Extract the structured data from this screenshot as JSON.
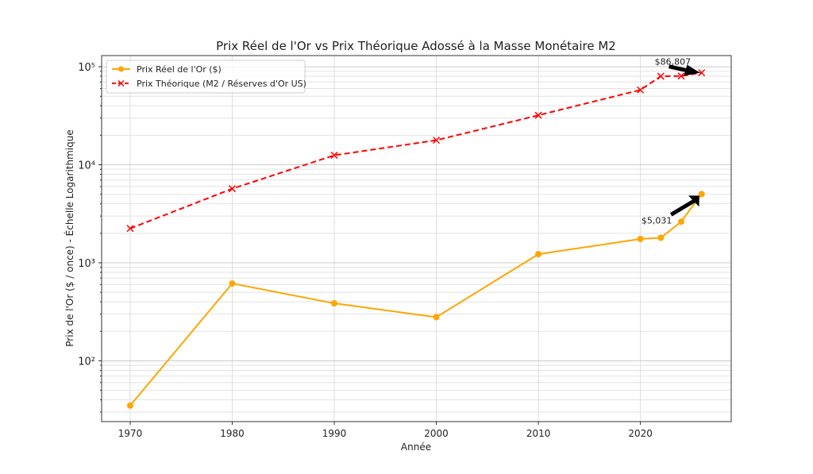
{
  "chart_data": {
    "type": "line",
    "title": "Prix Réel de l'Or vs Prix Théorique Adossé à la Masse Monétaire M2",
    "xlabel": "Année",
    "ylabel": "Prix de l'Or ($ / once) - Échelle Logarithmique",
    "yscale": "log",
    "xlim": [
      1967.2,
      2028.9
    ],
    "ylim": [
      24,
      130000
    ],
    "xticks": [
      1970,
      1980,
      1990,
      2000,
      2010,
      2020
    ],
    "yticks": [
      {
        "value": 100,
        "label": "10²"
      },
      {
        "value": 1000,
        "label": "10³"
      },
      {
        "value": 10000,
        "label": "10⁴"
      },
      {
        "value": 100000,
        "label": "10⁵"
      }
    ],
    "grid": true,
    "legend_position": "top-left",
    "series": [
      {
        "name": "Prix Réel de l'Or ($)",
        "color": "#FFA500",
        "marker": "circle",
        "style": "solid",
        "x": [
          1970,
          1980,
          1990,
          2000,
          2010,
          2020,
          2022,
          2024,
          2026
        ],
        "y": [
          35,
          615,
          386,
          279,
          1225,
          1750,
          1800,
          2630,
          5031
        ]
      },
      {
        "name": "Prix Théorique (M2 / Réserves d'Or US)",
        "color": "#FF0000",
        "marker": "x",
        "style": "dashed",
        "x": [
          1970,
          1980,
          1990,
          2000,
          2010,
          2020,
          2022,
          2024,
          2026
        ],
        "y": [
          2240,
          5700,
          12500,
          17800,
          32000,
          58000,
          80000,
          80500,
          86807
        ]
      }
    ],
    "annotations": [
      {
        "text": "$86,807",
        "x": 2026,
        "y": 86807
      },
      {
        "text": "$5,031",
        "x": 2026,
        "y": 5031
      }
    ]
  }
}
